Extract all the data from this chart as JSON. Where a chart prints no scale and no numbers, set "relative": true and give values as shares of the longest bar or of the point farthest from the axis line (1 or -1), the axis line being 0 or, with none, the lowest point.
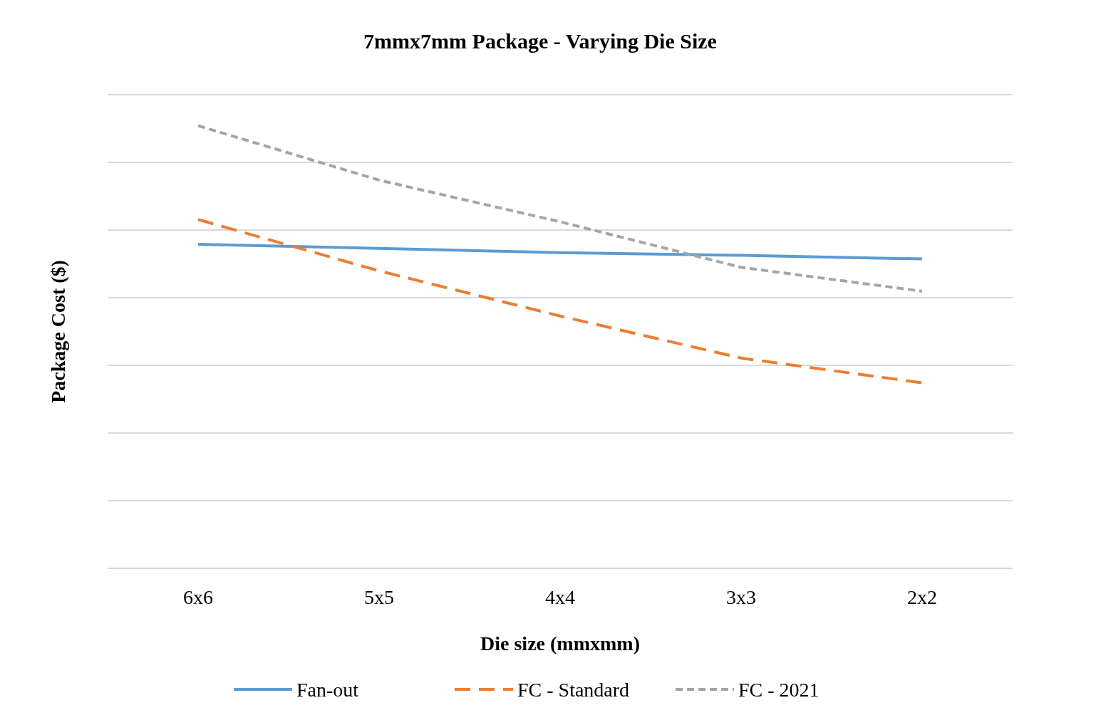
{
  "chart_data": {
    "type": "line",
    "title": "7mmx7mm Package - Varying Die Size",
    "xlabel": "Die size (mmxmm)",
    "ylabel": "Package Cost ($)",
    "relative": true,
    "grid": "y",
    "legend": "bottom",
    "marker": "none",
    "categories": [
      "6x6",
      "5x5",
      "4x4",
      "3x3",
      "2x2"
    ],
    "series": [
      {
        "name": "Fan-out",
        "color": "#5b9bd5",
        "line_style": "solid",
        "values": [
          0.732,
          0.723,
          0.713,
          0.707,
          0.699
        ]
      },
      {
        "name": "FC - Standard",
        "color": "#ed7d31",
        "line_style": "dashed",
        "values": [
          0.788,
          0.672,
          0.57,
          0.475,
          0.419
        ]
      },
      {
        "name": "FC - 2021",
        "color": "#a5a5a5",
        "line_style": "dotted",
        "values": [
          1,
          0.877,
          0.783,
          0.68,
          0.626
        ]
      }
    ]
  }
}
